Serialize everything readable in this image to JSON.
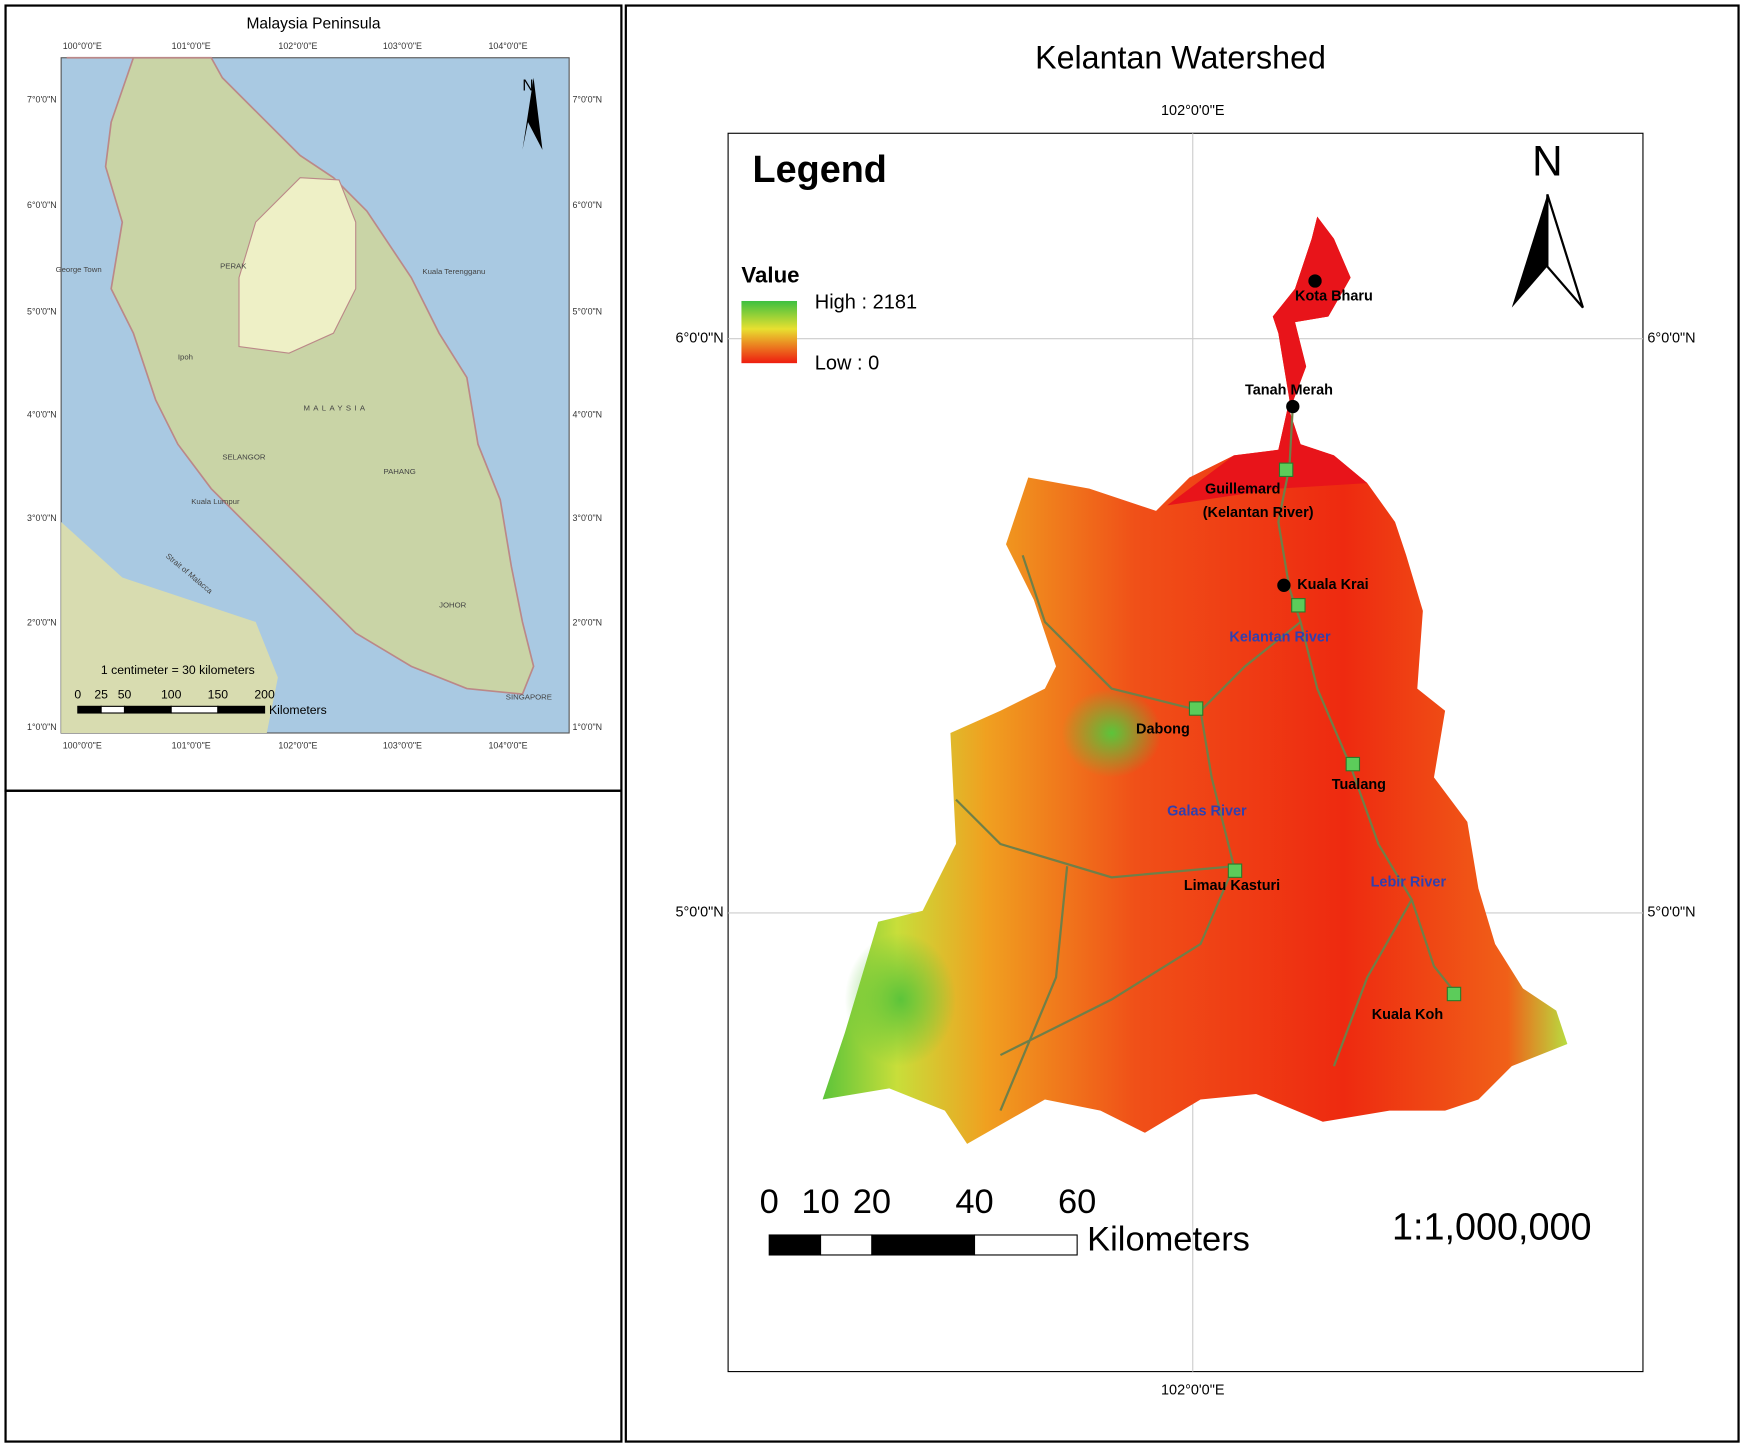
{
  "inset_map": {
    "title": "Malaysia Peninsula",
    "longitude_labels": [
      "100°0'0\"E",
      "101°0'0\"E",
      "102°0'0\"E",
      "103°0'0\"E",
      "104°0'0\"E"
    ],
    "latitude_labels": [
      "7°0'0\"N",
      "6°0'0\"N",
      "5°0'0\"N",
      "4°0'0\"N",
      "3°0'0\"N",
      "2°0'0\"N",
      "1°0'0\"N"
    ],
    "places": [
      "MALAYSIA",
      "PERAK",
      "SELANGOR",
      "PAHANG",
      "JOHOR",
      "Kuala Lumpur",
      "Strait of Malacca",
      "SINGAPORE",
      "Kuala Terengganu",
      "Ipoh",
      "George Town"
    ],
    "scale_note": "1 centimeter = 30 kilometers",
    "scale_ticks": [
      0,
      25,
      50,
      100,
      150,
      200
    ],
    "scale_unit": "Kilometers",
    "north": "N"
  },
  "main_map": {
    "title": "Kelantan Watershed",
    "longitude_label": "102°0'0\"E",
    "latitude_labels": [
      "6°0'0\"N",
      "5°0'0\"N"
    ],
    "legend": {
      "title": "Legend",
      "value_title": "Value",
      "high": "High : 2181",
      "low": "Low : 0"
    },
    "north": "N",
    "towns": [
      "Kota Bharu",
      "Tanah Merah",
      "Kuala Krai"
    ],
    "stations": [
      {
        "name": "Guillemard",
        "note": "(Kelantan River)"
      },
      {
        "name": "Dabong"
      },
      {
        "name": "Tualang"
      },
      {
        "name": "Limau Kasturi"
      },
      {
        "name": "Kuala Koh"
      }
    ],
    "rivers": [
      "Kelantan River",
      "Galas River",
      "Lebir River"
    ],
    "scale_ticks": [
      0,
      10,
      20,
      40,
      60
    ],
    "scale_unit": "Kilometers",
    "ratio": "1:1,000,000"
  }
}
